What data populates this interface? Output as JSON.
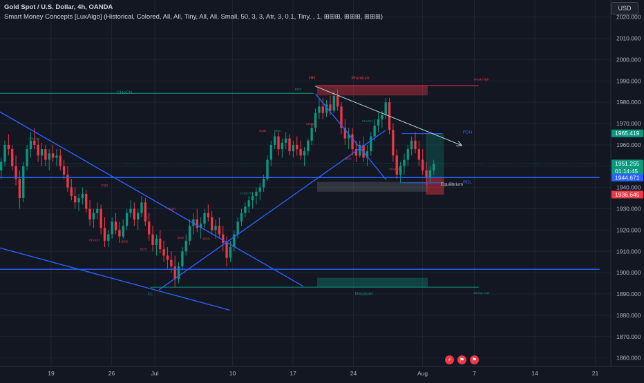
{
  "header": {
    "title": "Gold Spot / U.S. Dollar, 4h, OANDA",
    "indicator": "Smart Money Concepts [LuxAlgo] (Historical, Colored, All, All, Tiny, All, All, Small, 50, 3, 3, Atr, 3, 0.1, Tiny, , 1, ⊞⊞⊞, ⊞⊞⊞, ⊞⊞⊞)",
    "currency": "USD"
  },
  "colors": {
    "background": "#131722",
    "grid": "#1f2330",
    "bull": "#089981",
    "bear": "#f23645",
    "trendline": "#2962ff",
    "structure": "#089981",
    "premium": "#f23645",
    "discount": "#089981"
  },
  "chart_data": {
    "type": "candlestick",
    "y_axis": {
      "min": 1856,
      "max": 2028,
      "ticks": [
        "1860.000",
        "1870.000",
        "1880.000",
        "1890.000",
        "1900.000",
        "1910.000",
        "1920.000",
        "1930.000",
        "1940.000",
        "1950.000",
        "1960.000",
        "1970.000",
        "1980.000",
        "1990.000",
        "2000.000",
        "2010.000",
        "2020.000"
      ]
    },
    "x_axis": {
      "ticks": [
        {
          "label": "19",
          "day": 0
        },
        {
          "label": "26",
          "day": 7
        },
        {
          "label": "Jul",
          "day": 12
        },
        {
          "label": "10",
          "day": 21
        },
        {
          "label": "17",
          "day": 28
        },
        {
          "label": "24",
          "day": 35
        },
        {
          "label": "Aug",
          "day": 43
        },
        {
          "label": "7",
          "day": 49
        },
        {
          "label": "14",
          "day": 56
        },
        {
          "label": "21",
          "day": 63
        }
      ]
    },
    "price_labels": [
      {
        "value": "1965.419",
        "price": 1965.419,
        "color": "#089981"
      },
      {
        "value": "1951.255",
        "price": 1951.255,
        "color": "#089981",
        "countdown": "01:14:45"
      },
      {
        "value": "1944.671",
        "price": 1944.671,
        "color": "#2962ff"
      },
      {
        "value": "1936.645",
        "price": 1936.645,
        "color": "#f23645"
      }
    ],
    "annotations": [
      {
        "text": "CHoCH",
        "day": 8.5,
        "price": 1984.0,
        "color": "#089981",
        "size": 6.5
      },
      {
        "text": "HH",
        "day": 30.2,
        "price": 1990.8,
        "color": "#f23645",
        "size": 6.5
      },
      {
        "text": "Premium",
        "day": 35.8,
        "price": 1990.8,
        "color": "#f23645",
        "size": 6.5
      },
      {
        "text": "Weak High",
        "day": 49.8,
        "price": 1990.2,
        "color": "#f23645",
        "size": 4.5
      },
      {
        "text": "PDH",
        "day": 48.2,
        "price": 1965.3,
        "color": "#2962ff",
        "size": 6.5
      },
      {
        "text": "PDL",
        "day": 48.2,
        "price": 1941.8,
        "color": "#2962ff",
        "size": 6.5
      },
      {
        "text": "Equilibrium",
        "day": 46.4,
        "price": 1940.8,
        "color": "#d1d4dc",
        "size": 6.5
      },
      {
        "text": "Discount",
        "day": 36.2,
        "price": 1889.6,
        "color": "#089981",
        "size": 6.5
      },
      {
        "text": "Strong Low",
        "day": 49.8,
        "price": 1890.0,
        "color": "#089981",
        "size": 4.5
      },
      {
        "text": "LL",
        "day": 11.5,
        "price": 1889.6,
        "color": "#089981",
        "size": 6.5
      },
      {
        "text": "CHoCH",
        "day": -2.0,
        "price": 1962.4,
        "color": "#089981",
        "size": 4.5
      },
      {
        "text": "EQH",
        "day": 6.2,
        "price": 1940.6,
        "color": "#f23645",
        "size": 4.5
      },
      {
        "text": "CHoCH",
        "day": 5.0,
        "price": 1914.8,
        "color": "#f23645",
        "size": 4.5
      },
      {
        "text": "BOS",
        "day": 8.5,
        "price": 1914.2,
        "color": "#f23645",
        "size": 4.5
      },
      {
        "text": "BOS",
        "day": 10.7,
        "price": 1910.6,
        "color": "#f23645",
        "size": 4.5
      },
      {
        "text": "EQH",
        "day": 14.0,
        "price": 1929.6,
        "color": "#f23645",
        "size": 4.5
      },
      {
        "text": "BOS",
        "day": 15.0,
        "price": 1916.0,
        "color": "#f23645",
        "size": 4.5
      },
      {
        "text": "BOS",
        "day": 18.0,
        "price": 1915.4,
        "color": "#f23645",
        "size": 4.5
      },
      {
        "text": "CHoCH",
        "day": 22.5,
        "price": 1936.8,
        "color": "#089981",
        "size": 4.5
      },
      {
        "text": "EQH",
        "day": 24.5,
        "price": 1966.2,
        "color": "#f23645",
        "size": 4.5
      },
      {
        "text": "BOS",
        "day": 26.2,
        "price": 1966.2,
        "color": "#089981",
        "size": 4.5
      },
      {
        "text": "BOS",
        "day": 28.6,
        "price": 1985.6,
        "color": "#089981",
        "size": 4.5
      },
      {
        "text": "CHoCH",
        "day": 30.1,
        "price": 1969.4,
        "color": "#f23645",
        "size": 4.5
      },
      {
        "text": "CHoCH",
        "day": 36.6,
        "price": 1970.6,
        "color": "#089981",
        "size": 4.5
      },
      {
        "text": "BOS",
        "day": 34.4,
        "price": 1953.0,
        "color": "#f23645",
        "size": 4.5
      },
      {
        "text": "CHoCH",
        "day": 39.7,
        "price": 1948.2,
        "color": "#f23645",
        "size": 4.5
      }
    ],
    "zones": [
      {
        "name": "premium-zone",
        "day_start": 30.8,
        "day_end": 43.6,
        "price_low": 1983.2,
        "price_high": 1987.8,
        "fill": "#f23645",
        "opacity": 0.38
      },
      {
        "name": "equilibrium-zone",
        "day_start": 30.8,
        "day_end": 43.6,
        "price_low": 1938.0,
        "price_high": 1942.6,
        "fill": "#787b86",
        "opacity": 0.3
      },
      {
        "name": "discount-zone",
        "day_start": 30.8,
        "day_end": 43.6,
        "price_low": 1893.2,
        "price_high": 1897.6,
        "fill": "#089981",
        "opacity": 0.35
      },
      {
        "name": "long-position-profit",
        "day_start": 43.4,
        "day_end": 45.5,
        "price_low": 1944.671,
        "price_high": 1965.419,
        "fill": "#089981",
        "opacity": 0.25
      },
      {
        "name": "long-position-stop",
        "day_start": 43.4,
        "day_end": 45.5,
        "price_low": 1936.645,
        "price_high": 1944.671,
        "fill": "#f23645",
        "opacity": 0.45
      }
    ],
    "trendlines": [
      {
        "name": "descending-trendline",
        "x1": -7.0,
        "y1": 1978.0,
        "x2": 29.2,
        "y2": 1893.6,
        "color": "#2962ff",
        "width": 1.4
      },
      {
        "name": "lower-channel-line",
        "x1": -7.0,
        "y1": 1912.8,
        "x2": 20.7,
        "y2": 1882.4,
        "color": "#2962ff",
        "width": 1.4
      },
      {
        "name": "ascending-trendline",
        "x1": 12.5,
        "y1": 1892.0,
        "x2": 38.7,
        "y2": 1966.8,
        "color": "#2962ff",
        "width": 1.4
      },
      {
        "name": "drop-trendline",
        "x1": 30.6,
        "y1": 1984.0,
        "x2": 38.8,
        "y2": 1943.6,
        "color": "#2962ff",
        "width": 1.4
      },
      {
        "name": "horizontal-support",
        "x1": -7.0,
        "y1": 1944.671,
        "x2": 63.5,
        "y2": 1944.671,
        "color": "#2962ff",
        "width": 1.4
      },
      {
        "name": "horizontal-support-low",
        "x1": -7.0,
        "y1": 1901.6,
        "x2": 63.5,
        "y2": 1901.6,
        "color": "#2962ff",
        "width": 1.4
      },
      {
        "name": "pdh-line",
        "x1": 40.6,
        "y1": 1965.3,
        "x2": 45.3,
        "y2": 1965.3,
        "color": "#2962ff",
        "width": 1.0
      },
      {
        "name": "pdl-line",
        "x1": 40.6,
        "y1": 1942.2,
        "x2": 45.3,
        "y2": 1942.2,
        "color": "#2962ff",
        "width": 1.0
      },
      {
        "name": "choch-level",
        "x1": -7.0,
        "y1": 1984.2,
        "x2": 30.4,
        "y2": 1984.2,
        "color": "#089981",
        "width": 1.0
      },
      {
        "name": "strong-low-level",
        "x1": 11.5,
        "y1": 1893.2,
        "x2": 49.5,
        "y2": 1893.2,
        "color": "#089981",
        "width": 1.0
      },
      {
        "name": "weak-high-level",
        "x1": 30.6,
        "y1": 1987.8,
        "x2": 49.5,
        "y2": 1987.8,
        "color": "#f23645",
        "width": 1.0
      },
      {
        "name": "current-price-line",
        "x1": -7.0,
        "y1": 1951.255,
        "x2": 63.5,
        "y2": 1951.255,
        "color": "#089981",
        "width": 0.6,
        "dash": "1,2"
      },
      {
        "name": "projection-trendline",
        "x1": 30.6,
        "y1": 1987.5,
        "x2": 47.5,
        "y2": 1959.8,
        "color": "#b2dfdb",
        "width": 1.0,
        "arrow": true
      }
    ],
    "candles_ohlc": [
      [
        1958,
        1962,
        1948,
        1951
      ],
      [
        1951,
        1958,
        1947,
        1956
      ],
      [
        1956,
        1961,
        1952,
        1954
      ],
      [
        1954,
        1957,
        1945,
        1948
      ],
      [
        1948,
        1954,
        1944,
        1952
      ],
      [
        1952,
        1962,
        1950,
        1960
      ],
      [
        1960,
        1965,
        1955,
        1958
      ],
      [
        1958,
        1960,
        1948,
        1950
      ],
      [
        1950,
        1955,
        1941,
        1944
      ],
      [
        1944,
        1948,
        1930,
        1935
      ],
      [
        1935,
        1952,
        1933,
        1950
      ],
      [
        1950,
        1960,
        1948,
        1958
      ],
      [
        1958,
        1966,
        1954,
        1962
      ],
      [
        1962,
        1968,
        1958,
        1960
      ],
      [
        1960,
        1963,
        1952,
        1955
      ],
      [
        1955,
        1961,
        1950,
        1958
      ],
      [
        1958,
        1960,
        1950,
        1953
      ],
      [
        1953,
        1958,
        1948,
        1956
      ],
      [
        1956,
        1960,
        1952,
        1954
      ],
      [
        1954,
        1958,
        1950,
        1955
      ],
      [
        1955,
        1958,
        1948,
        1950
      ],
      [
        1950,
        1953,
        1944,
        1946
      ],
      [
        1946,
        1950,
        1938,
        1940
      ],
      [
        1940,
        1944,
        1934,
        1936
      ],
      [
        1936,
        1940,
        1930,
        1933
      ],
      [
        1933,
        1937,
        1929,
        1935
      ],
      [
        1935,
        1940,
        1932,
        1937
      ],
      [
        1937,
        1939,
        1928,
        1930
      ],
      [
        1930,
        1934,
        1922,
        1925
      ],
      [
        1925,
        1930,
        1921,
        1928
      ],
      [
        1928,
        1933,
        1925,
        1930
      ],
      [
        1930,
        1932,
        1918,
        1921
      ],
      [
        1921,
        1926,
        1912,
        1915
      ],
      [
        1915,
        1920,
        1912,
        1918
      ],
      [
        1918,
        1926,
        1916,
        1924
      ],
      [
        1924,
        1928,
        1918,
        1920
      ],
      [
        1920,
        1924,
        1914,
        1917
      ],
      [
        1917,
        1925,
        1916,
        1922
      ],
      [
        1922,
        1930,
        1920,
        1928
      ],
      [
        1928,
        1934,
        1926,
        1930
      ],
      [
        1930,
        1933,
        1922,
        1925
      ],
      [
        1925,
        1930,
        1920,
        1928
      ],
      [
        1928,
        1936,
        1926,
        1933
      ],
      [
        1933,
        1935,
        1922,
        1924
      ],
      [
        1924,
        1928,
        1915,
        1918
      ],
      [
        1918,
        1922,
        1910,
        1913
      ],
      [
        1913,
        1918,
        1908,
        1916
      ],
      [
        1916,
        1920,
        1909,
        1911
      ],
      [
        1911,
        1915,
        1905,
        1908
      ],
      [
        1908,
        1912,
        1902,
        1906
      ],
      [
        1906,
        1910,
        1900,
        1903
      ],
      [
        1903,
        1908,
        1893,
        1897
      ],
      [
        1897,
        1905,
        1895,
        1903
      ],
      [
        1903,
        1912,
        1901,
        1910
      ],
      [
        1910,
        1918,
        1908,
        1915
      ],
      [
        1915,
        1925,
        1913,
        1922
      ],
      [
        1922,
        1928,
        1918,
        1925
      ],
      [
        1925,
        1930,
        1919,
        1921
      ],
      [
        1921,
        1926,
        1916,
        1923
      ],
      [
        1923,
        1930,
        1921,
        1928
      ],
      [
        1928,
        1932,
        1924,
        1926
      ],
      [
        1926,
        1929,
        1918,
        1920
      ],
      [
        1920,
        1925,
        1916,
        1922
      ],
      [
        1922,
        1926,
        1916,
        1918
      ],
      [
        1918,
        1922,
        1910,
        1914
      ],
      [
        1914,
        1917,
        1903,
        1907
      ],
      [
        1907,
        1915,
        1905,
        1912
      ],
      [
        1912,
        1920,
        1910,
        1918
      ],
      [
        1918,
        1926,
        1916,
        1924
      ],
      [
        1924,
        1930,
        1922,
        1928
      ],
      [
        1928,
        1933,
        1926,
        1931
      ],
      [
        1931,
        1936,
        1928,
        1934
      ],
      [
        1934,
        1938,
        1930,
        1936
      ],
      [
        1936,
        1940,
        1932,
        1938
      ],
      [
        1938,
        1942,
        1934,
        1940
      ],
      [
        1940,
        1946,
        1938,
        1944
      ],
      [
        1944,
        1955,
        1943,
        1953
      ],
      [
        1953,
        1962,
        1950,
        1960
      ],
      [
        1960,
        1966,
        1958,
        1964
      ],
      [
        1964,
        1966,
        1955,
        1958
      ],
      [
        1958,
        1963,
        1954,
        1961
      ],
      [
        1961,
        1966,
        1958,
        1963
      ],
      [
        1963,
        1965,
        1955,
        1957
      ],
      [
        1957,
        1962,
        1954,
        1960
      ],
      [
        1960,
        1964,
        1955,
        1958
      ],
      [
        1958,
        1962,
        1953,
        1955
      ],
      [
        1955,
        1959,
        1950,
        1957
      ],
      [
        1957,
        1963,
        1955,
        1962
      ],
      [
        1962,
        1970,
        1960,
        1968
      ],
      [
        1968,
        1977,
        1966,
        1975
      ],
      [
        1975,
        1982,
        1972,
        1978
      ],
      [
        1978,
        1982,
        1972,
        1975
      ],
      [
        1975,
        1981,
        1973,
        1979
      ],
      [
        1979,
        1983,
        1974,
        1976
      ],
      [
        1976,
        1985,
        1975,
        1983
      ],
      [
        1983,
        1986,
        1976,
        1978
      ],
      [
        1978,
        1980,
        1965,
        1968
      ],
      [
        1968,
        1972,
        1960,
        1963
      ],
      [
        1963,
        1968,
        1958,
        1965
      ],
      [
        1965,
        1968,
        1955,
        1958
      ],
      [
        1958,
        1962,
        1952,
        1955
      ],
      [
        1955,
        1962,
        1954,
        1960
      ],
      [
        1960,
        1964,
        1952,
        1954
      ],
      [
        1954,
        1960,
        1950,
        1957
      ],
      [
        1957,
        1966,
        1955,
        1964
      ],
      [
        1964,
        1972,
        1962,
        1969
      ],
      [
        1969,
        1975,
        1966,
        1972
      ],
      [
        1972,
        1976,
        1968,
        1974
      ],
      [
        1974,
        1982,
        1972,
        1980
      ],
      [
        1980,
        1982,
        1965,
        1967
      ],
      [
        1967,
        1970,
        1952,
        1955
      ],
      [
        1955,
        1958,
        1944,
        1946
      ],
      [
        1946,
        1952,
        1942,
        1950
      ],
      [
        1950,
        1956,
        1946,
        1953
      ],
      [
        1953,
        1960,
        1950,
        1958
      ],
      [
        1958,
        1964,
        1955,
        1962
      ],
      [
        1962,
        1966,
        1956,
        1958
      ],
      [
        1958,
        1962,
        1950,
        1953
      ],
      [
        1953,
        1958,
        1946,
        1948
      ],
      [
        1948,
        1952,
        1941,
        1945
      ],
      [
        1945,
        1950,
        1942,
        1948
      ],
      [
        1948,
        1953,
        1946,
        1951
      ]
    ]
  }
}
